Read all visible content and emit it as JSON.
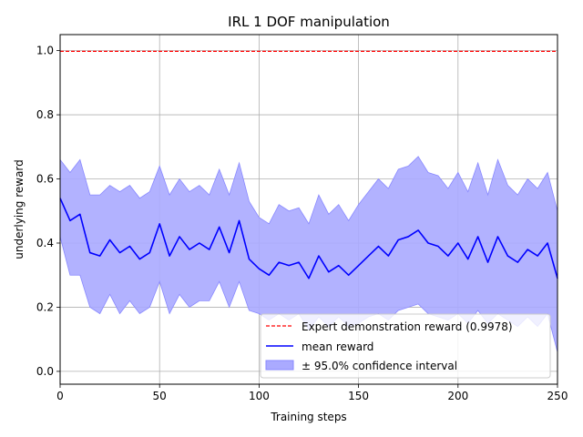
{
  "chart_data": {
    "type": "line",
    "title": "IRL 1 DOF manipulation",
    "xlabel": "Training steps",
    "ylabel": "underlying reward",
    "xlim": [
      0,
      250
    ],
    "ylim": [
      -0.04,
      1.05
    ],
    "xticks": [
      0,
      50,
      100,
      150,
      200,
      250
    ],
    "xtick_labels": [
      "0",
      "50",
      "100",
      "150",
      "200",
      "250"
    ],
    "yticks": [
      0.0,
      0.2,
      0.4,
      0.6,
      0.8,
      1.0
    ],
    "ytick_labels": [
      "0.0",
      "0.2",
      "0.4",
      "0.6",
      "0.8",
      "1.0"
    ],
    "grid": true,
    "legend_position": "lower-right",
    "colors": {
      "expert": "#ff0000",
      "mean": "#0000ff",
      "band": "#aaaaff",
      "band_edge": "#8888ff"
    },
    "series": [
      {
        "name": "Expert demonstration reward (0.9978)",
        "kind": "hline",
        "y": 0.9978
      },
      {
        "name": "mean reward",
        "kind": "line",
        "x": [
          0,
          5,
          10,
          15,
          20,
          25,
          30,
          35,
          40,
          45,
          50,
          55,
          60,
          65,
          70,
          75,
          80,
          85,
          90,
          95,
          100,
          105,
          110,
          115,
          120,
          125,
          130,
          135,
          140,
          145,
          150,
          155,
          160,
          165,
          170,
          175,
          180,
          185,
          190,
          195,
          200,
          205,
          210,
          215,
          220,
          225,
          230,
          235,
          240,
          245,
          250
        ],
        "y": [
          0.54,
          0.47,
          0.49,
          0.37,
          0.36,
          0.41,
          0.37,
          0.39,
          0.35,
          0.37,
          0.46,
          0.36,
          0.42,
          0.38,
          0.4,
          0.38,
          0.45,
          0.37,
          0.47,
          0.35,
          0.32,
          0.3,
          0.34,
          0.33,
          0.34,
          0.29,
          0.36,
          0.31,
          0.33,
          0.3,
          0.33,
          0.36,
          0.39,
          0.36,
          0.41,
          0.42,
          0.44,
          0.4,
          0.39,
          0.36,
          0.4,
          0.35,
          0.42,
          0.34,
          0.42,
          0.36,
          0.34,
          0.38,
          0.36,
          0.4,
          0.29
        ]
      },
      {
        "name": "± 95.0% confidence interval",
        "kind": "band",
        "x": [
          0,
          5,
          10,
          15,
          20,
          25,
          30,
          35,
          40,
          45,
          50,
          55,
          60,
          65,
          70,
          75,
          80,
          85,
          90,
          95,
          100,
          105,
          110,
          115,
          120,
          125,
          130,
          135,
          140,
          145,
          150,
          155,
          160,
          165,
          170,
          175,
          180,
          185,
          190,
          195,
          200,
          205,
          210,
          215,
          220,
          225,
          230,
          235,
          240,
          245,
          250
        ],
        "lower": [
          0.42,
          0.3,
          0.3,
          0.2,
          0.18,
          0.24,
          0.18,
          0.22,
          0.18,
          0.2,
          0.28,
          0.18,
          0.24,
          0.2,
          0.22,
          0.22,
          0.28,
          0.2,
          0.28,
          0.19,
          0.18,
          0.16,
          0.18,
          0.16,
          0.18,
          0.13,
          0.17,
          0.14,
          0.17,
          0.14,
          0.15,
          0.17,
          0.18,
          0.16,
          0.19,
          0.2,
          0.21,
          0.18,
          0.17,
          0.16,
          0.18,
          0.15,
          0.19,
          0.15,
          0.18,
          0.16,
          0.14,
          0.17,
          0.14,
          0.18,
          0.06
        ],
        "upper": [
          0.66,
          0.62,
          0.66,
          0.55,
          0.55,
          0.58,
          0.56,
          0.58,
          0.54,
          0.56,
          0.64,
          0.55,
          0.6,
          0.56,
          0.58,
          0.55,
          0.63,
          0.55,
          0.65,
          0.53,
          0.48,
          0.46,
          0.52,
          0.5,
          0.51,
          0.46,
          0.55,
          0.49,
          0.52,
          0.47,
          0.52,
          0.56,
          0.6,
          0.57,
          0.63,
          0.64,
          0.67,
          0.62,
          0.61,
          0.57,
          0.62,
          0.56,
          0.65,
          0.55,
          0.66,
          0.58,
          0.55,
          0.6,
          0.57,
          0.62,
          0.5
        ]
      }
    ]
  }
}
